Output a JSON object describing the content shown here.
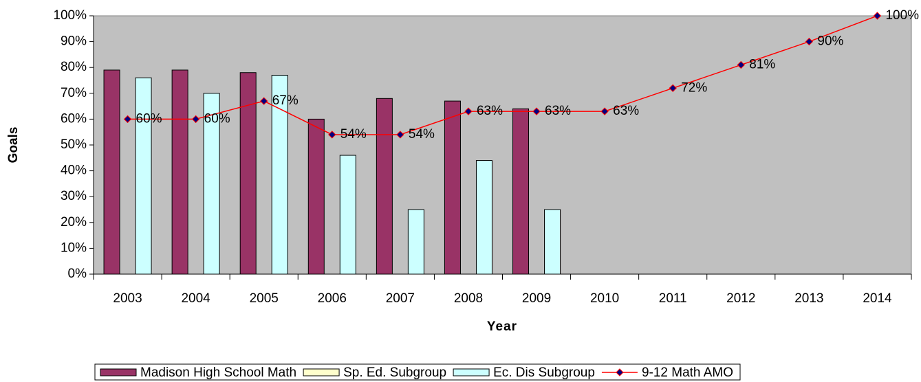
{
  "chart_data": {
    "type": "bar",
    "x_label": "Year",
    "y_label": "Goals",
    "categories": [
      "2003",
      "2004",
      "2005",
      "2006",
      "2007",
      "2008",
      "2009",
      "2010",
      "2011",
      "2012",
      "2013",
      "2014"
    ],
    "series": [
      {
        "name": "Madison High School Math",
        "color": "#993366",
        "values": [
          79,
          79,
          78,
          60,
          68,
          67,
          64,
          null,
          null,
          null,
          null,
          null
        ]
      },
      {
        "name": "Sp. Ed. Subgroup",
        "color": "#ffffcc",
        "values": [
          null,
          null,
          null,
          null,
          null,
          null,
          null,
          null,
          null,
          null,
          null,
          null
        ]
      },
      {
        "name": "Ec. Dis Subgroup",
        "color": "#ccffff",
        "values": [
          76,
          70,
          77,
          46,
          25,
          44,
          25,
          null,
          null,
          null,
          null,
          null
        ]
      },
      {
        "name": "9-12 Math AMO",
        "type": "line",
        "color": "#ff0000",
        "marker_color": "#000080",
        "values": [
          60,
          60,
          67,
          54,
          54,
          63,
          63,
          63,
          72,
          81,
          90,
          100
        ],
        "value_labels": [
          "60%",
          "60%",
          "67%",
          "54%",
          "54%",
          "63%",
          "63%",
          "63%",
          "72%",
          "81%",
          "90%",
          "100%"
        ]
      }
    ],
    "ylim": [
      0,
      100
    ],
    "yticks": [
      {
        "value": 0,
        "label": "0%"
      },
      {
        "value": 10,
        "label": "10%"
      },
      {
        "value": 20,
        "label": "20%"
      },
      {
        "value": 30,
        "label": "30%"
      },
      {
        "value": 40,
        "label": "40%"
      },
      {
        "value": 50,
        "label": "50%"
      },
      {
        "value": 60,
        "label": "60%"
      },
      {
        "value": 70,
        "label": "70%"
      },
      {
        "value": 80,
        "label": "80%"
      },
      {
        "value": 90,
        "label": "90%"
      },
      {
        "value": 100,
        "label": "100%"
      }
    ],
    "plot_background": "#c0c0c0",
    "legend": "bottom"
  }
}
